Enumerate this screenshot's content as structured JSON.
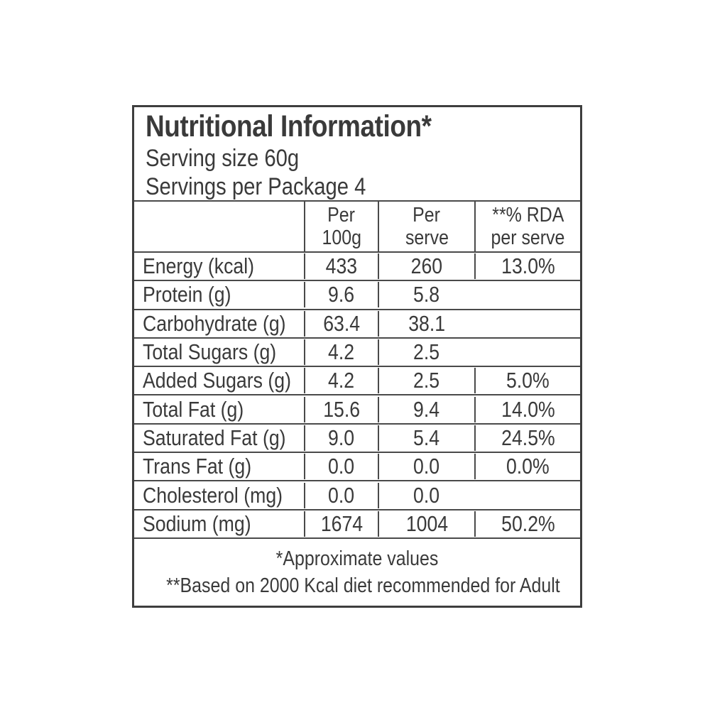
{
  "colors": {
    "bg": "#ffffff",
    "text": "#3a3a3a",
    "line": "#4a4a4a",
    "border": "#3e3e3e"
  },
  "label": {
    "title": "Nutritional Information*",
    "serving_size": "Serving size 60g",
    "servings_per_package": "Servings per Package 4"
  },
  "table": {
    "columns": [
      {
        "line1": "Per",
        "line2": "100g"
      },
      {
        "line1": "Per",
        "line2": "serve"
      },
      {
        "line1": "**% RDA",
        "line2": "per serve"
      }
    ],
    "rows": [
      {
        "nutrient": "Energy (kcal)",
        "per_100g": "433",
        "per_serve": "260",
        "rda_per_serve": "13.0%"
      },
      {
        "nutrient": "Protein (g)",
        "per_100g": "9.6",
        "per_serve": "5.8",
        "rda_per_serve": ""
      },
      {
        "nutrient": "Carbohydrate (g)",
        "per_100g": "63.4",
        "per_serve": "38.1",
        "rda_per_serve": ""
      },
      {
        "nutrient": "Total Sugars (g)",
        "per_100g": "4.2",
        "per_serve": "2.5",
        "rda_per_serve": ""
      },
      {
        "nutrient": "Added Sugars (g)",
        "per_100g": "4.2",
        "per_serve": "2.5",
        "rda_per_serve": "5.0%"
      },
      {
        "nutrient": "Total Fat (g)",
        "per_100g": "15.6",
        "per_serve": "9.4",
        "rda_per_serve": "14.0%"
      },
      {
        "nutrient": "Saturated Fat (g)",
        "per_100g": "9.0",
        "per_serve": "5.4",
        "rda_per_serve": "24.5%"
      },
      {
        "nutrient": "Trans Fat (g)",
        "per_100g": "0.0",
        "per_serve": "0.0",
        "rda_per_serve": "0.0%"
      },
      {
        "nutrient": "Cholesterol (mg)",
        "per_100g": "0.0",
        "per_serve": "0.0",
        "rda_per_serve": ""
      },
      {
        "nutrient": "Sodium (mg)",
        "per_100g": "1674",
        "per_serve": "1004",
        "rda_per_serve": "50.2%"
      }
    ]
  },
  "footnotes": [
    "*Approximate values",
    "**Based on 2000 Kcal diet recommended for Adult"
  ]
}
